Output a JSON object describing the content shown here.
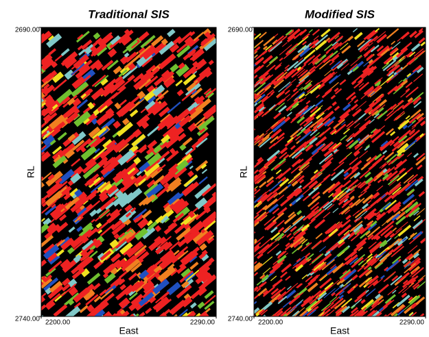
{
  "chart_data": [
    {
      "type": "image",
      "title": "Traditional SIS",
      "xlabel": "East",
      "ylabel": "RL",
      "xlim": [
        2200,
        2290
      ],
      "ylim": [
        2690,
        2740
      ],
      "y_inverted": true,
      "xticks": [
        {
          "value": 2200,
          "label": "2200.00"
        },
        {
          "value": 2290,
          "label": "2290.00"
        }
      ],
      "yticks": [
        {
          "value": 2690,
          "label": "2690.00"
        },
        {
          "value": 2740,
          "label": "2740.00"
        }
      ],
      "background": "#000000",
      "colors": [
        "#ee2222",
        "#f08020",
        "#f0e020",
        "#70c030",
        "#80c8c8",
        "#2050c0"
      ]
    },
    {
      "type": "image",
      "title": "Modified SIS",
      "xlabel": "East",
      "ylabel": "RL",
      "xlim": [
        2200,
        2290
      ],
      "ylim": [
        2690,
        2740
      ],
      "y_inverted": true,
      "xticks": [
        {
          "value": 2200,
          "label": "2200.00"
        },
        {
          "value": 2290,
          "label": "2290.00"
        }
      ],
      "yticks": [
        {
          "value": 2690,
          "label": "2690.00"
        },
        {
          "value": 2740,
          "label": "2740.00"
        }
      ],
      "background": "#000000",
      "colors": [
        "#ee2222",
        "#f08020",
        "#f0e020",
        "#70c030",
        "#80c8c8",
        "#2050c0"
      ]
    }
  ]
}
